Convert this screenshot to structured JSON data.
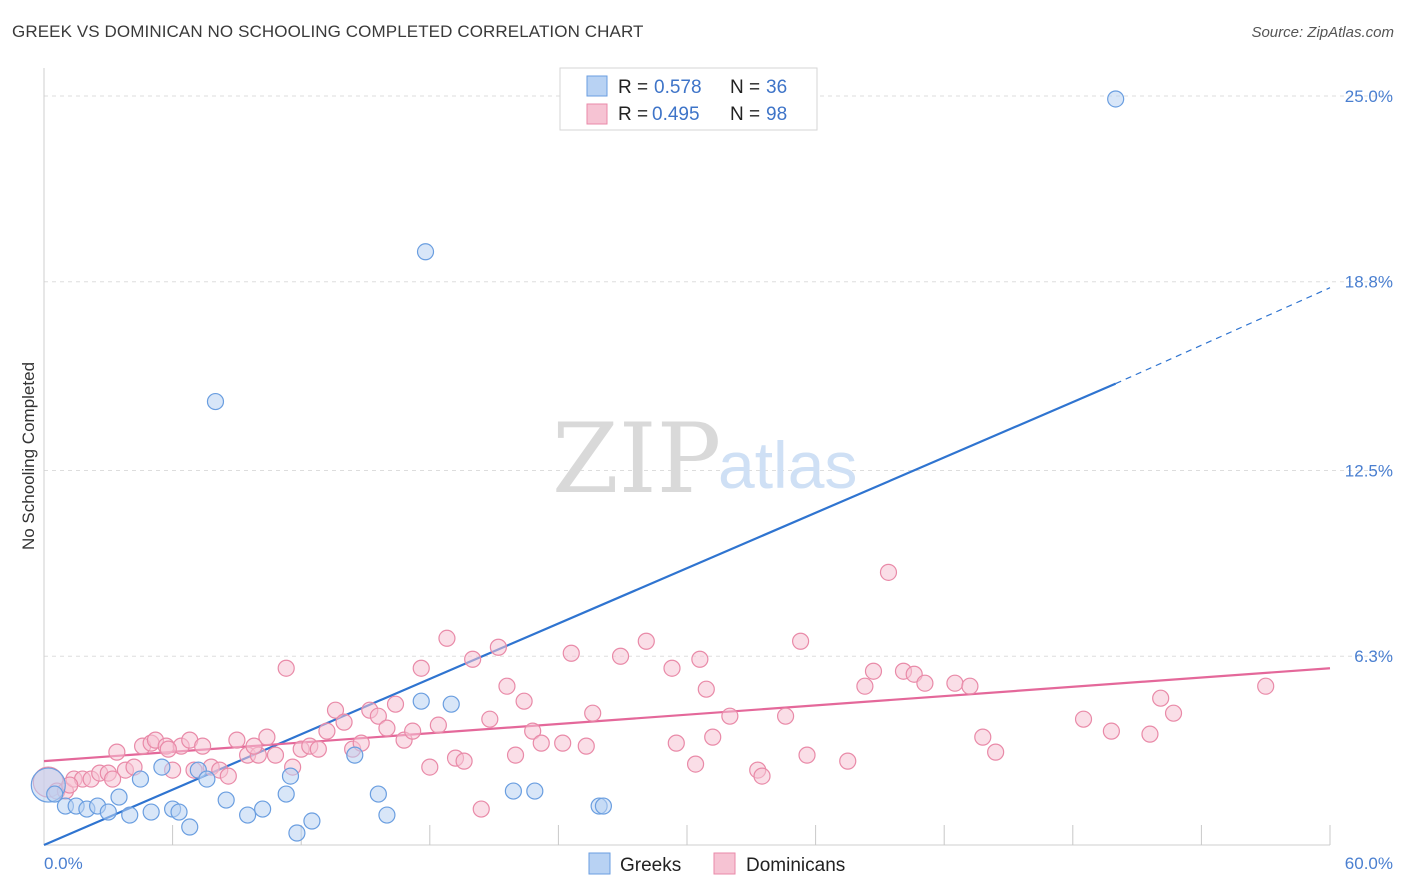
{
  "title": "GREEK VS DOMINICAN NO SCHOOLING COMPLETED CORRELATION CHART",
  "source": "Source: ZipAtlas.com",
  "watermark": {
    "zip": "ZIP",
    "atlas": "atlas"
  },
  "colors": {
    "greek_fill": "#b8d2f3",
    "greek_stroke": "#6a9ee0",
    "greek_line": "#2f74d0",
    "dominican_fill": "#f6c3d3",
    "dominican_stroke": "#e98aa8",
    "dominican_line": "#e4689a",
    "grid": "#dddddd",
    "axis_tick_text": "#4a7fd0"
  },
  "legend": {
    "items": [
      {
        "r_label": "R =",
        "r_value": "0.578",
        "n_label": "N =",
        "n_value": "36"
      },
      {
        "r_label": "R =",
        "r_value": "0.495",
        "n_label": "N =",
        "n_value": "98"
      }
    ]
  },
  "chart_data": {
    "type": "scatter",
    "title": "GREEK VS DOMINICAN NO SCHOOLING COMPLETED CORRELATION CHART",
    "xlabel": "",
    "ylabel": "No Schooling Completed",
    "xlim": [
      0,
      60
    ],
    "ylim": [
      0,
      25.6
    ],
    "x_tick_labels": [
      "0.0%",
      "60.0%"
    ],
    "y_ticks": [
      6.3,
      12.5,
      18.8,
      25.0
    ],
    "y_tick_labels": [
      "6.3%",
      "12.5%",
      "18.8%",
      "25.0%"
    ],
    "grid": true,
    "legend_position": "top-center",
    "series": [
      {
        "name": "Greeks",
        "trend": {
          "x0": 0,
          "y0": 0,
          "x1": 50,
          "y1": 15.4,
          "dashed_to_x": 60,
          "dashed_to_y": 18.6
        },
        "points": [
          [
            0.2,
            2.0
          ],
          [
            0.5,
            1.7
          ],
          [
            1.0,
            1.3
          ],
          [
            1.5,
            1.3
          ],
          [
            2.0,
            1.2
          ],
          [
            2.5,
            1.3
          ],
          [
            3.0,
            1.1
          ],
          [
            3.5,
            1.6
          ],
          [
            4.0,
            1.0
          ],
          [
            4.5,
            2.2
          ],
          [
            5.0,
            1.1
          ],
          [
            5.5,
            2.6
          ],
          [
            6.0,
            1.2
          ],
          [
            6.3,
            1.1
          ],
          [
            6.8,
            0.6
          ],
          [
            7.2,
            2.5
          ],
          [
            7.6,
            2.2
          ],
          [
            8.0,
            14.8
          ],
          [
            8.5,
            1.5
          ],
          [
            9.5,
            1.0
          ],
          [
            10.2,
            1.2
          ],
          [
            11.3,
            1.7
          ],
          [
            11.5,
            2.3
          ],
          [
            11.8,
            0.4
          ],
          [
            12.5,
            0.8
          ],
          [
            14.5,
            3.0
          ],
          [
            15.6,
            1.7
          ],
          [
            16.0,
            1.0
          ],
          [
            17.6,
            4.8
          ],
          [
            17.8,
            19.8
          ],
          [
            19.0,
            4.7
          ],
          [
            21.9,
            1.8
          ],
          [
            22.9,
            1.8
          ],
          [
            25.9,
            1.3
          ],
          [
            26.1,
            1.3
          ],
          [
            50.0,
            24.9
          ]
        ]
      },
      {
        "name": "Dominicans",
        "trend": {
          "x0": 0,
          "y0": 2.8,
          "x1": 60,
          "y1": 5.9
        },
        "points": [
          [
            0.2,
            2.1
          ],
          [
            0.6,
            1.8
          ],
          [
            1.0,
            1.8
          ],
          [
            1.4,
            2.2
          ],
          [
            1.8,
            2.2
          ],
          [
            2.2,
            2.2
          ],
          [
            2.6,
            2.4
          ],
          [
            3.0,
            2.4
          ],
          [
            3.4,
            3.1
          ],
          [
            3.8,
            2.5
          ],
          [
            4.2,
            2.6
          ],
          [
            4.6,
            3.3
          ],
          [
            5.0,
            3.4
          ],
          [
            5.2,
            3.5
          ],
          [
            5.7,
            3.3
          ],
          [
            6.0,
            2.5
          ],
          [
            6.4,
            3.3
          ],
          [
            6.8,
            3.5
          ],
          [
            7.0,
            2.5
          ],
          [
            7.4,
            3.3
          ],
          [
            7.8,
            2.6
          ],
          [
            8.2,
            2.5
          ],
          [
            8.6,
            2.3
          ],
          [
            9.0,
            3.5
          ],
          [
            9.5,
            3.0
          ],
          [
            10.0,
            3.0
          ],
          [
            10.4,
            3.6
          ],
          [
            10.8,
            3.0
          ],
          [
            11.3,
            5.9
          ],
          [
            11.6,
            2.6
          ],
          [
            12.0,
            3.2
          ],
          [
            12.4,
            3.3
          ],
          [
            12.8,
            3.2
          ],
          [
            13.2,
            3.8
          ],
          [
            13.6,
            4.5
          ],
          [
            14.0,
            4.1
          ],
          [
            14.4,
            3.2
          ],
          [
            14.8,
            3.4
          ],
          [
            15.2,
            4.5
          ],
          [
            15.6,
            4.3
          ],
          [
            16.0,
            3.9
          ],
          [
            16.4,
            4.7
          ],
          [
            16.8,
            3.5
          ],
          [
            17.2,
            3.8
          ],
          [
            17.6,
            5.9
          ],
          [
            18.0,
            2.6
          ],
          [
            18.4,
            4.0
          ],
          [
            18.8,
            6.9
          ],
          [
            19.2,
            2.9
          ],
          [
            19.6,
            2.8
          ],
          [
            20.0,
            6.2
          ],
          [
            20.4,
            1.2
          ],
          [
            20.8,
            4.2
          ],
          [
            21.2,
            6.6
          ],
          [
            21.6,
            5.3
          ],
          [
            22.0,
            3.0
          ],
          [
            22.4,
            4.8
          ],
          [
            22.8,
            3.8
          ],
          [
            23.2,
            3.4
          ],
          [
            24.2,
            3.4
          ],
          [
            24.6,
            6.4
          ],
          [
            25.3,
            3.3
          ],
          [
            25.6,
            4.4
          ],
          [
            26.9,
            6.3
          ],
          [
            28.1,
            6.8
          ],
          [
            29.3,
            5.9
          ],
          [
            29.5,
            3.4
          ],
          [
            30.4,
            2.7
          ],
          [
            30.6,
            6.2
          ],
          [
            30.9,
            5.2
          ],
          [
            31.2,
            3.6
          ],
          [
            32.0,
            4.3
          ],
          [
            33.3,
            2.5
          ],
          [
            33.5,
            2.3
          ],
          [
            34.6,
            4.3
          ],
          [
            35.3,
            6.8
          ],
          [
            35.6,
            3.0
          ],
          [
            37.5,
            2.8
          ],
          [
            38.3,
            5.3
          ],
          [
            38.7,
            5.8
          ],
          [
            39.4,
            9.1
          ],
          [
            40.1,
            5.8
          ],
          [
            40.6,
            5.7
          ],
          [
            41.1,
            5.4
          ],
          [
            42.5,
            5.4
          ],
          [
            43.2,
            5.3
          ],
          [
            43.8,
            3.6
          ],
          [
            44.4,
            3.1
          ],
          [
            48.5,
            4.2
          ],
          [
            49.8,
            3.8
          ],
          [
            51.6,
            3.7
          ],
          [
            52.1,
            4.9
          ],
          [
            52.7,
            4.4
          ],
          [
            57.0,
            5.3
          ],
          [
            1.2,
            2.0
          ],
          [
            3.2,
            2.2
          ],
          [
            5.8,
            3.2
          ],
          [
            9.8,
            3.3
          ]
        ]
      }
    ],
    "bottom_legend": [
      "Greeks",
      "Dominicans"
    ]
  }
}
